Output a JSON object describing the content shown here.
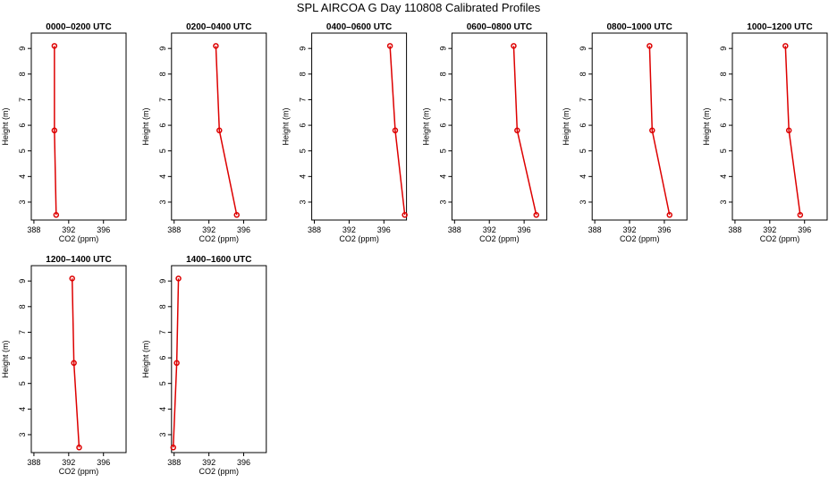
{
  "title": "SPL AIRCOA G  Day 110808  Calibrated Profiles",
  "chart_data": [
    {
      "type": "line",
      "title": "0000–0200 UTC",
      "xlabel": "CO2 (ppm)",
      "ylabel": "Height (m)",
      "color": "#dd0000",
      "x": [
        390.36,
        390.36,
        390.56
      ],
      "values": [
        9.1,
        5.8,
        2.5
      ],
      "xlim": [
        387.7,
        398.6
      ],
      "ylim": [
        2.3,
        9.6
      ],
      "xticks": [
        388,
        392,
        396
      ],
      "yticks": [
        3,
        4,
        5,
        6,
        7,
        8,
        9
      ]
    },
    {
      "type": "line",
      "title": "0200–0400 UTC",
      "xlabel": "CO2 (ppm)",
      "ylabel": "Height (m)",
      "color": "#dd0000",
      "x": [
        392.8,
        393.2,
        395.2
      ],
      "values": [
        9.1,
        5.8,
        2.5
      ],
      "xlim": [
        387.7,
        398.6
      ],
      "ylim": [
        2.3,
        9.6
      ],
      "xticks": [
        388,
        392,
        396
      ],
      "yticks": [
        3,
        4,
        5,
        6,
        7,
        8,
        9
      ]
    },
    {
      "type": "line",
      "title": "0400–0600 UTC",
      "xlabel": "CO2 (ppm)",
      "ylabel": "Height (m)",
      "color": "#dd0000",
      "x": [
        396.7,
        397.3,
        398.4
      ],
      "values": [
        9.1,
        5.8,
        2.5
      ],
      "xlim": [
        387.7,
        398.6
      ],
      "ylim": [
        2.3,
        9.6
      ],
      "xticks": [
        388,
        392,
        396
      ],
      "yticks": [
        3,
        4,
        5,
        6,
        7,
        8,
        9
      ]
    },
    {
      "type": "line",
      "title": "0600–0800 UTC",
      "xlabel": "CO2 (ppm)",
      "ylabel": "Height (m)",
      "color": "#dd0000",
      "x": [
        394.8,
        395.2,
        397.4
      ],
      "values": [
        9.1,
        5.8,
        2.5
      ],
      "xlim": [
        387.7,
        398.6
      ],
      "ylim": [
        2.3,
        9.6
      ],
      "xticks": [
        388,
        392,
        396
      ],
      "yticks": [
        3,
        4,
        5,
        6,
        7,
        8,
        9
      ]
    },
    {
      "type": "line",
      "title": "0800–1000 UTC",
      "xlabel": "CO2 (ppm)",
      "ylabel": "Height (m)",
      "color": "#dd0000",
      "x": [
        394.3,
        394.6,
        396.6
      ],
      "values": [
        9.1,
        5.8,
        2.5
      ],
      "xlim": [
        387.7,
        398.6
      ],
      "ylim": [
        2.3,
        9.6
      ],
      "xticks": [
        388,
        392,
        396
      ],
      "yticks": [
        3,
        4,
        5,
        6,
        7,
        8,
        9
      ]
    },
    {
      "type": "line",
      "title": "1000–1200 UTC",
      "xlabel": "CO2 (ppm)",
      "ylabel": "Height (m)",
      "color": "#dd0000",
      "x": [
        393.8,
        394.2,
        395.5
      ],
      "values": [
        9.1,
        5.8,
        2.5
      ],
      "xlim": [
        387.7,
        398.6
      ],
      "ylim": [
        2.3,
        9.6
      ],
      "xticks": [
        388,
        392,
        396
      ],
      "yticks": [
        3,
        4,
        5,
        6,
        7,
        8,
        9
      ]
    },
    {
      "type": "line",
      "title": "1200–1400 UTC",
      "xlabel": "CO2 (ppm)",
      "ylabel": "Height (m)",
      "color": "#dd0000",
      "x": [
        392.4,
        392.6,
        393.2
      ],
      "values": [
        9.1,
        5.8,
        2.5
      ],
      "xlim": [
        387.7,
        398.6
      ],
      "ylim": [
        2.3,
        9.6
      ],
      "xticks": [
        388,
        392,
        396
      ],
      "yticks": [
        3,
        4,
        5,
        6,
        7,
        8,
        9
      ]
    },
    {
      "type": "line",
      "title": "1400–1600 UTC",
      "xlabel": "CO2 (ppm)",
      "ylabel": "Height (m)",
      "color": "#dd0000",
      "x": [
        388.5,
        388.3,
        387.9
      ],
      "values": [
        9.1,
        5.8,
        2.5
      ],
      "xlim": [
        387.7,
        398.6
      ],
      "ylim": [
        2.3,
        9.6
      ],
      "xticks": [
        388,
        392,
        396
      ],
      "yticks": [
        3,
        4,
        5,
        6,
        7,
        8,
        9
      ]
    }
  ]
}
